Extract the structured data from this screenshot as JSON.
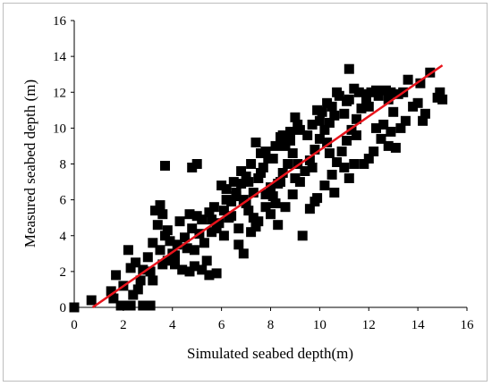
{
  "chart_data": {
    "type": "scatter",
    "title": "",
    "xlabel": "Simulated seabed depth(m)",
    "ylabel": "Measured seabed depth (m)",
    "xlim": [
      0,
      16
    ],
    "ylim": [
      0,
      16
    ],
    "xticks": [
      "0",
      "2",
      "4",
      "6",
      "8",
      "10",
      "12",
      "14",
      "16"
    ],
    "yticks": [
      "0",
      "2",
      "4",
      "6",
      "8",
      "10",
      "12",
      "14",
      "16"
    ],
    "grid": false,
    "legend": "none",
    "marker": "square",
    "marker_color": "#000000",
    "fit_line": {
      "color": "#e8141c",
      "points": [
        [
          0.75,
          0.0
        ],
        [
          15.0,
          13.5
        ]
      ]
    },
    "points": [
      [
        0.0,
        0.0
      ],
      [
        0.7,
        0.4
      ],
      [
        1.5,
        0.9
      ],
      [
        1.7,
        1.8
      ],
      [
        1.9,
        0.1
      ],
      [
        2.1,
        0.1
      ],
      [
        2.3,
        0.1
      ],
      [
        2.6,
        1.0
      ],
      [
        2.8,
        0.1
      ],
      [
        3.1,
        0.1
      ],
      [
        3.2,
        1.5
      ],
      [
        2.3,
        2.2
      ],
      [
        2.2,
        3.2
      ],
      [
        2.5,
        2.5
      ],
      [
        2.8,
        2.1
      ],
      [
        3.0,
        2.8
      ],
      [
        3.2,
        3.6
      ],
      [
        3.4,
        4.6
      ],
      [
        3.6,
        5.2
      ],
      [
        3.3,
        5.4
      ],
      [
        3.5,
        5.7
      ],
      [
        3.7,
        4.0
      ],
      [
        3.8,
        4.3
      ],
      [
        3.5,
        3.2
      ],
      [
        3.8,
        2.6
      ],
      [
        4.1,
        2.4
      ],
      [
        4.4,
        2.1
      ],
      [
        4.7,
        2.0
      ],
      [
        4.9,
        2.3
      ],
      [
        5.2,
        2.1
      ],
      [
        5.5,
        1.8
      ],
      [
        5.8,
        1.9
      ],
      [
        4.0,
        3.0
      ],
      [
        4.2,
        3.5
      ],
      [
        4.5,
        3.9
      ],
      [
        4.8,
        4.4
      ],
      [
        5.0,
        5.1
      ],
      [
        4.9,
        3.2
      ],
      [
        5.3,
        3.6
      ],
      [
        5.6,
        4.2
      ],
      [
        5.9,
        4.7
      ],
      [
        5.2,
        4.9
      ],
      [
        5.5,
        5.3
      ],
      [
        3.7,
        7.9
      ],
      [
        4.8,
        7.8
      ],
      [
        5.0,
        8.0
      ],
      [
        6.1,
        4.0
      ],
      [
        6.3,
        5.0
      ],
      [
        6.4,
        5.9
      ],
      [
        6.6,
        6.4
      ],
      [
        6.8,
        6.9
      ],
      [
        7.0,
        7.3
      ],
      [
        6.2,
        6.6
      ],
      [
        6.5,
        7.0
      ],
      [
        6.9,
        6.0
      ],
      [
        7.1,
        5.4
      ],
      [
        7.3,
        6.4
      ],
      [
        7.5,
        7.2
      ],
      [
        7.7,
        7.8
      ],
      [
        7.9,
        8.3
      ],
      [
        7.2,
        8.0
      ],
      [
        7.6,
        8.6
      ],
      [
        7.4,
        9.2
      ],
      [
        6.7,
        3.5
      ],
      [
        6.9,
        3.0
      ],
      [
        7.2,
        4.2
      ],
      [
        7.5,
        4.8
      ],
      [
        7.8,
        5.6
      ],
      [
        8.1,
        6.2
      ],
      [
        8.3,
        6.9
      ],
      [
        8.5,
        7.5
      ],
      [
        8.7,
        8.0
      ],
      [
        8.9,
        8.6
      ],
      [
        8.2,
        9.0
      ],
      [
        8.4,
        9.5
      ],
      [
        8.8,
        9.8
      ],
      [
        9.1,
        10.2
      ],
      [
        9.0,
        10.6
      ],
      [
        8.0,
        5.2
      ],
      [
        8.3,
        4.6
      ],
      [
        8.6,
        5.6
      ],
      [
        8.9,
        6.3
      ],
      [
        9.2,
        7.0
      ],
      [
        9.4,
        7.6
      ],
      [
        9.6,
        8.2
      ],
      [
        9.8,
        8.8
      ],
      [
        10.0,
        9.4
      ],
      [
        10.2,
        9.9
      ],
      [
        10.4,
        10.3
      ],
      [
        10.6,
        10.7
      ],
      [
        10.1,
        10.9
      ],
      [
        9.3,
        4.0
      ],
      [
        9.6,
        5.5
      ],
      [
        9.9,
        6.1
      ],
      [
        10.2,
        6.8
      ],
      [
        10.5,
        7.4
      ],
      [
        10.7,
        8.1
      ],
      [
        10.9,
        8.7
      ],
      [
        11.1,
        9.3
      ],
      [
        11.3,
        9.9
      ],
      [
        11.5,
        10.5
      ],
      [
        11.7,
        11.1
      ],
      [
        11.2,
        11.6
      ],
      [
        11.2,
        13.3
      ],
      [
        11.6,
        12.0
      ],
      [
        11.9,
        11.5
      ],
      [
        12.1,
        12.0
      ],
      [
        12.4,
        11.8
      ],
      [
        12.7,
        12.1
      ],
      [
        12.9,
        12.0
      ],
      [
        13.2,
        11.9
      ],
      [
        11.0,
        7.8
      ],
      [
        11.4,
        8.0
      ],
      [
        11.8,
        8.0
      ],
      [
        12.2,
        8.7
      ],
      [
        12.5,
        9.4
      ],
      [
        12.6,
        10.2
      ],
      [
        12.9,
        9.8
      ],
      [
        13.1,
        8.9
      ],
      [
        13.3,
        10.0
      ],
      [
        13.5,
        10.4
      ],
      [
        13.8,
        11.2
      ],
      [
        14.0,
        11.4
      ],
      [
        14.3,
        10.8
      ],
      [
        14.2,
        10.4
      ],
      [
        14.5,
        13.1
      ],
      [
        14.8,
        11.7
      ],
      [
        14.9,
        12.0
      ],
      [
        15.0,
        11.6
      ],
      [
        13.6,
        12.7
      ],
      [
        14.1,
        12.5
      ],
      [
        10.7,
        12.0
      ],
      [
        11.4,
        12.2
      ],
      [
        11.9,
        11.9
      ],
      [
        12.3,
        12.1
      ],
      [
        9.5,
        9.6
      ],
      [
        9.7,
        10.2
      ],
      [
        10.3,
        11.4
      ],
      [
        10.8,
        11.8
      ],
      [
        8.6,
        9.0
      ],
      [
        8.1,
        8.3
      ],
      [
        7.6,
        7.5
      ],
      [
        7.1,
        7.0
      ],
      [
        6.6,
        6.2
      ],
      [
        6.1,
        5.4
      ],
      [
        5.6,
        4.9
      ],
      [
        5.1,
        4.1
      ],
      [
        4.6,
        3.3
      ],
      [
        4.1,
        2.9
      ],
      [
        3.6,
        2.4
      ],
      [
        3.1,
        2.0
      ],
      [
        9.0,
        7.2
      ],
      [
        9.7,
        7.8
      ],
      [
        10.4,
        8.6
      ],
      [
        8.4,
        7.0
      ],
      [
        7.8,
        6.3
      ],
      [
        7.0,
        5.8
      ],
      [
        6.4,
        5.1
      ],
      [
        5.8,
        4.4
      ],
      [
        8.5,
        9.6
      ],
      [
        9.2,
        9.9
      ],
      [
        10.0,
        10.4
      ],
      [
        11.0,
        10.8
      ],
      [
        12.0,
        11.2
      ],
      [
        12.8,
        11.6
      ],
      [
        13.4,
        12.0
      ],
      [
        7.3,
        5.0
      ],
      [
        8.0,
        6.7
      ],
      [
        9.1,
        8.0
      ],
      [
        10.3,
        9.2
      ],
      [
        11.5,
        9.6
      ],
      [
        12.3,
        10.0
      ],
      [
        13.0,
        10.9
      ],
      [
        6.0,
        6.8
      ],
      [
        6.8,
        7.6
      ],
      [
        7.8,
        8.7
      ],
      [
        8.8,
        9.3
      ],
      [
        5.7,
        5.6
      ],
      [
        6.2,
        6.0
      ],
      [
        4.3,
        4.8
      ],
      [
        4.7,
        5.2
      ],
      [
        3.9,
        3.7
      ],
      [
        2.7,
        1.5
      ],
      [
        2.0,
        1.2
      ],
      [
        1.6,
        0.5
      ],
      [
        2.4,
        0.7
      ],
      [
        9.8,
        5.9
      ],
      [
        10.6,
        6.4
      ],
      [
        11.2,
        7.2
      ],
      [
        12.0,
        8.3
      ],
      [
        12.8,
        9.0
      ],
      [
        9.9,
        11.0
      ],
      [
        10.5,
        11.2
      ],
      [
        11.1,
        11.5
      ],
      [
        8.2,
        5.8
      ],
      [
        7.4,
        4.5
      ],
      [
        6.7,
        4.4
      ],
      [
        5.4,
        2.6
      ]
    ]
  }
}
